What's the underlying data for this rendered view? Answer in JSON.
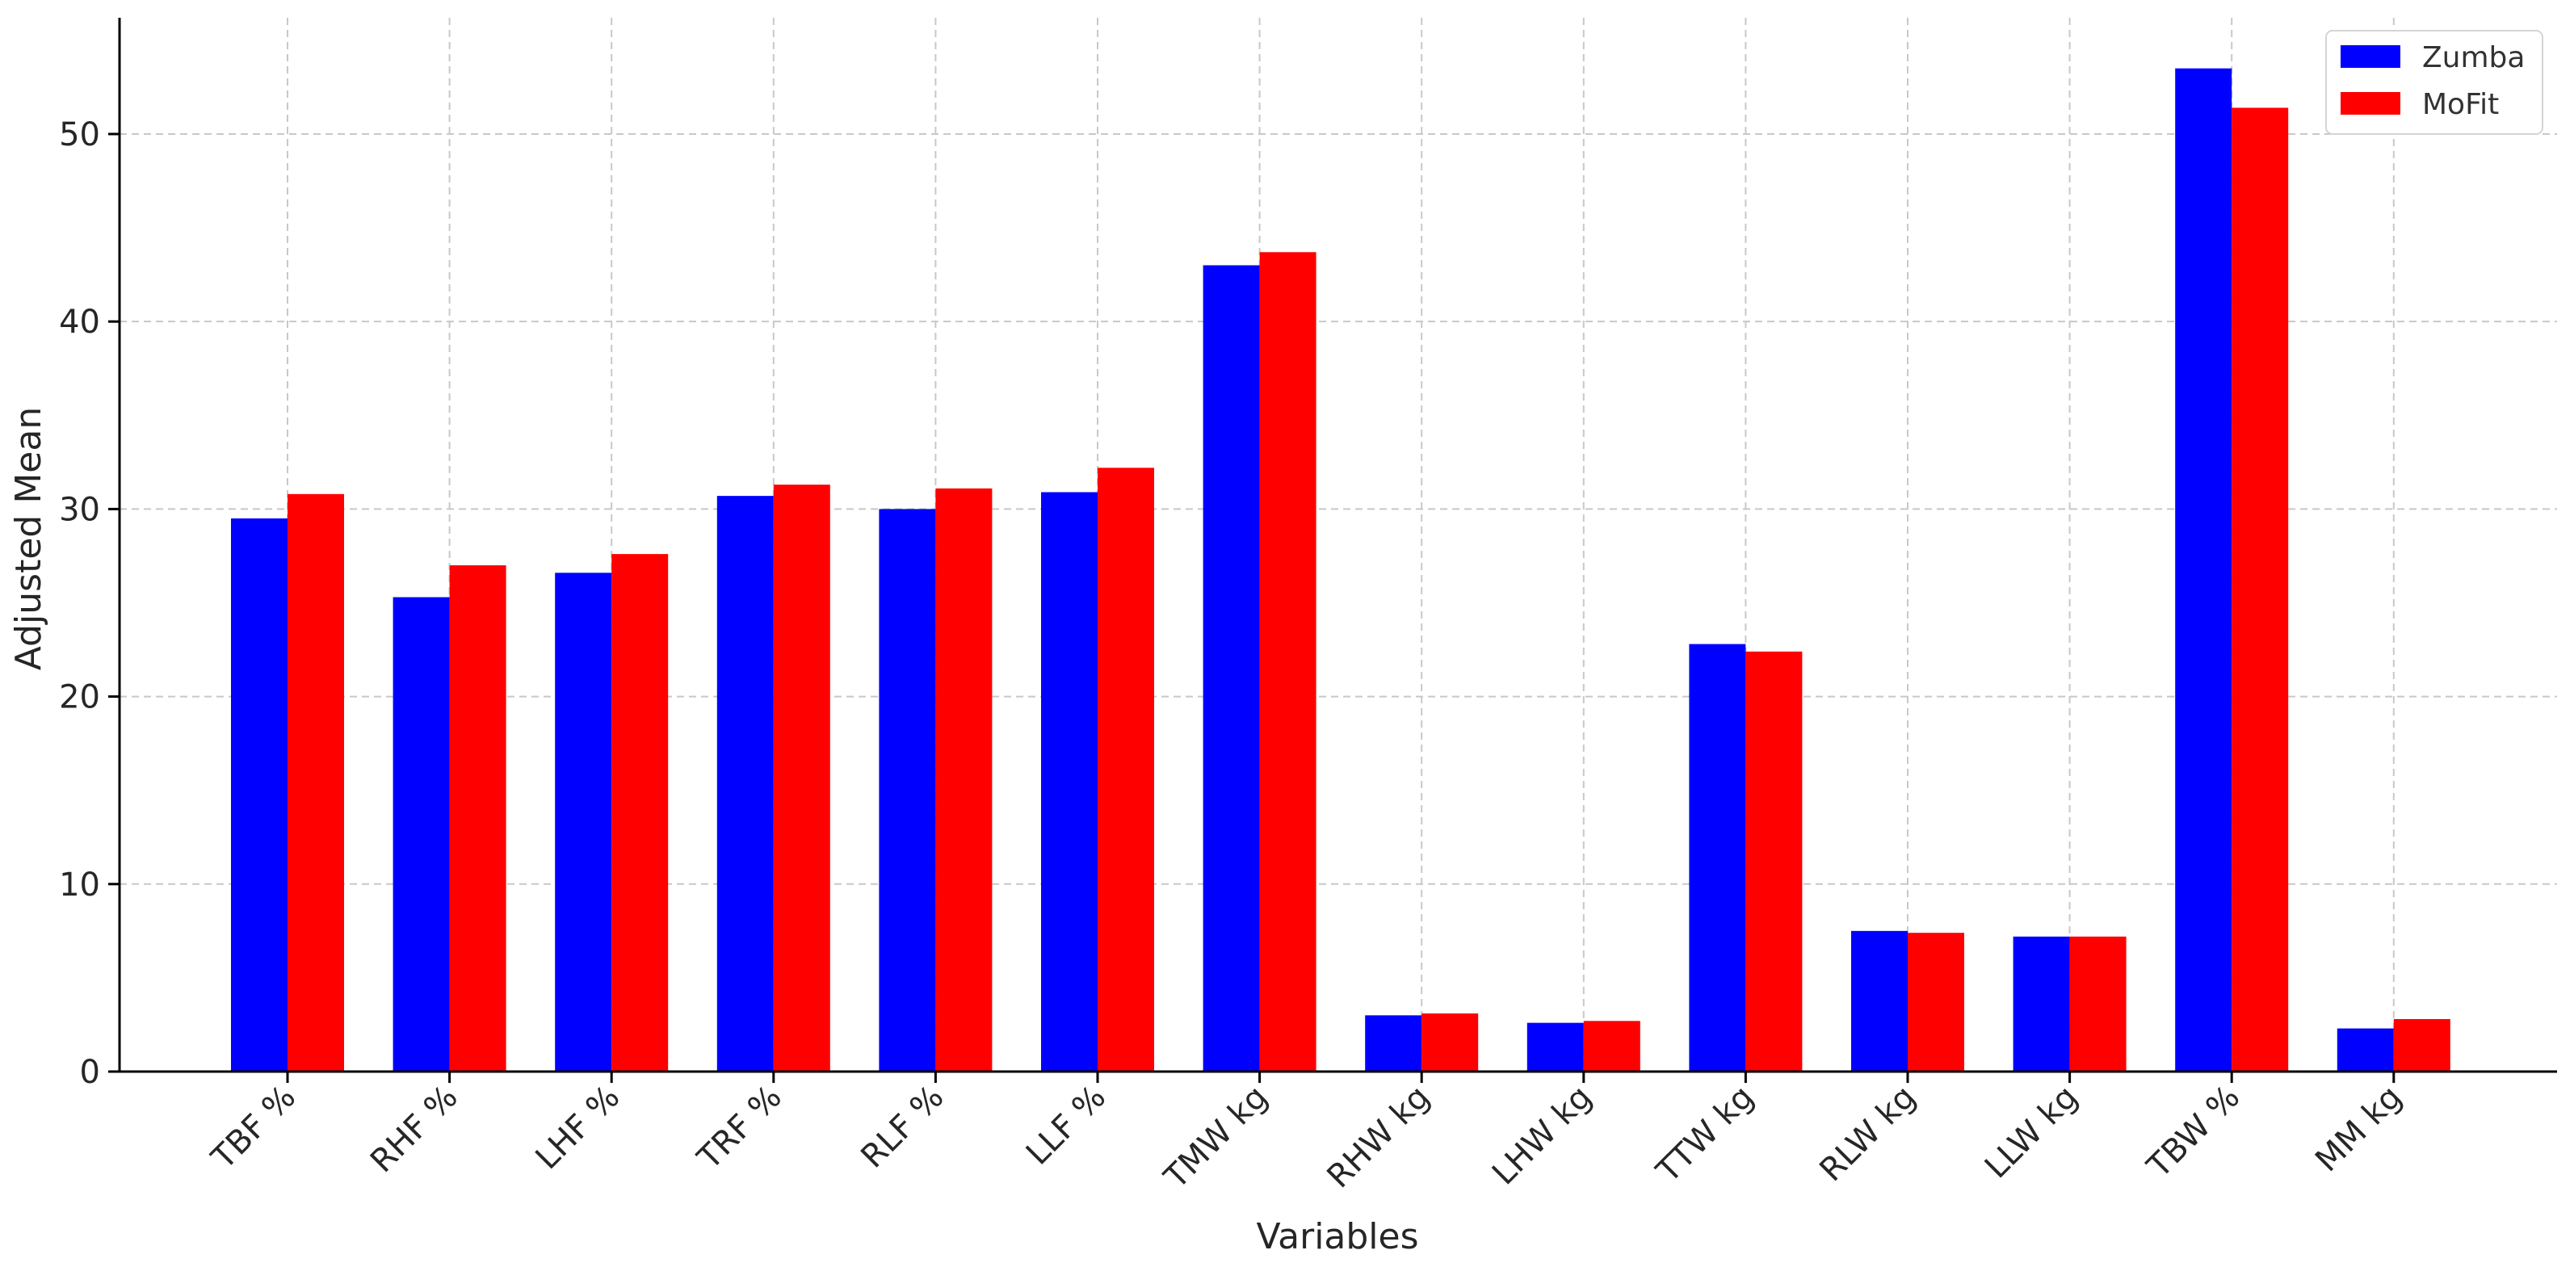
{
  "chart_data": {
    "type": "bar",
    "title": "",
    "xlabel": "Variables",
    "ylabel": "Adjusted Mean",
    "categories": [
      "TBF %",
      "RHF %",
      "LHF %",
      "TRF %",
      "RLF %",
      "LLF %",
      "TMW kg",
      "RHW kg",
      "LHW kg",
      "TTW kg",
      "RLW kg",
      "LLW kg",
      "TBW %",
      "MM kg"
    ],
    "series": [
      {
        "name": "Zumba",
        "color": "#0000ff",
        "values": [
          29.5,
          25.3,
          26.6,
          30.7,
          30.0,
          30.9,
          43.0,
          3.0,
          2.6,
          22.8,
          7.5,
          7.2,
          53.5,
          2.3
        ]
      },
      {
        "name": "MoFit",
        "color": "#ff0000",
        "values": [
          30.8,
          27.0,
          27.6,
          31.3,
          31.1,
          32.2,
          43.7,
          3.1,
          2.7,
          22.4,
          7.4,
          7.2,
          51.4,
          2.8
        ]
      }
    ],
    "ylim": [
      0,
      56.2
    ],
    "yticks": [
      0,
      10,
      20,
      30,
      40,
      50
    ],
    "grid": true,
    "legend_position": "top-right",
    "x_tick_rotation": "45 degrees"
  }
}
